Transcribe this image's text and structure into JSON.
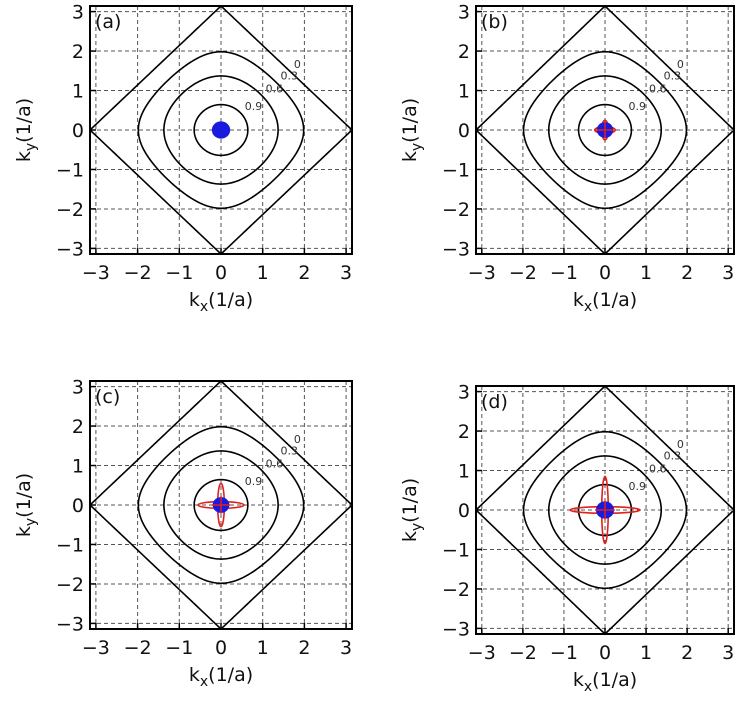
{
  "colors": {
    "contour": "#000000",
    "grid": "#555555",
    "blue_marker": "#1a1adf",
    "red_contour": "#e0201c"
  },
  "chart_data": [
    {
      "type": "contour",
      "panel_label": "(a)",
      "xlabel_main": "k",
      "xlabel_sub": "x",
      "xlabel_unit": "(1/a)",
      "ylabel_main": "k",
      "ylabel_sub": "y",
      "ylabel_unit": "(1/a)",
      "xlim": [
        -3.14159,
        3.14159
      ],
      "ylim": [
        -3.14159,
        3.14159
      ],
      "xticks": [
        -3,
        -2,
        -1,
        0,
        1,
        2,
        3
      ],
      "yticks": [
        -3,
        -2,
        -1,
        0,
        1,
        2,
        3
      ],
      "xtick_labels": [
        "−3",
        "−2",
        "−1",
        "0",
        "1",
        "2",
        "3"
      ],
      "ytick_labels": [
        "−3",
        "−2",
        "−1",
        "0",
        "1",
        "2",
        "3"
      ],
      "grid": true,
      "contour_levels": [
        0,
        0.3,
        0.6,
        0.9
      ],
      "contour_level_labels": [
        "0",
        "0.3",
        "0.6",
        "0.9"
      ],
      "blue_marker_radius": 0.22,
      "red_arm_length": 0.0
    },
    {
      "type": "contour",
      "panel_label": "(b)",
      "xlabel_main": "k",
      "xlabel_sub": "x",
      "xlabel_unit": "(1/a)",
      "ylabel_main": "k",
      "ylabel_sub": "y",
      "ylabel_unit": "(1/a)",
      "xlim": [
        -3.14159,
        3.14159
      ],
      "ylim": [
        -3.14159,
        3.14159
      ],
      "xticks": [
        -3,
        -2,
        -1,
        0,
        1,
        2,
        3
      ],
      "yticks": [
        -3,
        -2,
        -1,
        0,
        1,
        2,
        3
      ],
      "xtick_labels": [
        "−3",
        "−2",
        "−1",
        "0",
        "1",
        "2",
        "3"
      ],
      "ytick_labels": [
        "−3",
        "−2",
        "−1",
        "0",
        "1",
        "2",
        "3"
      ],
      "grid": true,
      "contour_levels": [
        0,
        0.3,
        0.6,
        0.9
      ],
      "contour_level_labels": [
        "0",
        "0.3",
        "0.6",
        "0.9"
      ],
      "blue_marker_radius": 0.2,
      "red_arm_length": 0.25
    },
    {
      "type": "contour",
      "panel_label": "(c)",
      "xlabel_main": "k",
      "xlabel_sub": "x",
      "xlabel_unit": "(1/a)",
      "ylabel_main": "k",
      "ylabel_sub": "y",
      "ylabel_unit": "(1/a)",
      "xlim": [
        -3.14159,
        3.14159
      ],
      "ylim": [
        -3.14159,
        3.14159
      ],
      "xticks": [
        -3,
        -2,
        -1,
        0,
        1,
        2,
        3
      ],
      "yticks": [
        -3,
        -2,
        -1,
        0,
        1,
        2,
        3
      ],
      "xtick_labels": [
        "−3",
        "−2",
        "−1",
        "0",
        "1",
        "2",
        "3"
      ],
      "ytick_labels": [
        "−3",
        "−2",
        "−1",
        "0",
        "1",
        "2",
        "3"
      ],
      "grid": true,
      "contour_levels": [
        0,
        0.3,
        0.6,
        0.9
      ],
      "contour_level_labels": [
        "0",
        "0.3",
        "0.6",
        "0.9"
      ],
      "blue_marker_radius": 0.2,
      "red_arm_length": 0.55
    },
    {
      "type": "contour",
      "panel_label": "(d)",
      "xlabel_main": "k",
      "xlabel_sub": "x",
      "xlabel_unit": "(1/a)",
      "ylabel_main": "k",
      "ylabel_sub": "y",
      "ylabel_unit": "(1/a)",
      "xlim": [
        -3.14159,
        3.14159
      ],
      "ylim": [
        -3.14159,
        3.14159
      ],
      "xticks": [
        -3,
        -2,
        -1,
        0,
        1,
        2,
        3
      ],
      "yticks": [
        -3,
        -2,
        -1,
        0,
        1,
        2,
        3
      ],
      "xtick_labels": [
        "−3",
        "−2",
        "−1",
        "0",
        "1",
        "2",
        "3"
      ],
      "ytick_labels": [
        "−3",
        "−2",
        "−1",
        "0",
        "1",
        "2",
        "3"
      ],
      "grid": true,
      "contour_levels": [
        0,
        0.3,
        0.6,
        0.9
      ],
      "contour_level_labels": [
        "0",
        "0.3",
        "0.6",
        "0.9"
      ],
      "blue_marker_radius": 0.22,
      "red_arm_length": 0.85
    }
  ]
}
